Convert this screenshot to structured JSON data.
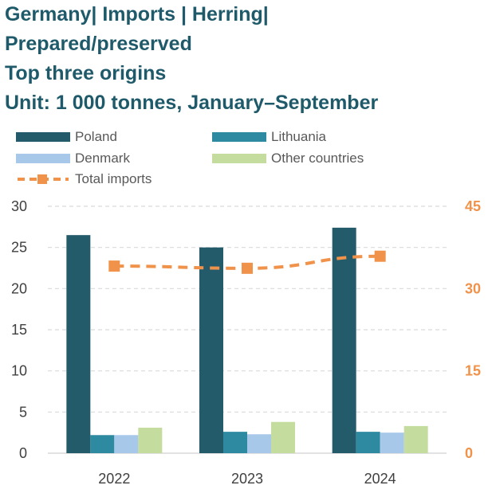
{
  "title_lines": [
    "Germany| Imports | Herring|",
    "Prepared/preserved",
    "Top three origins",
    "Unit: 1 000 tonnes, January–September"
  ],
  "chart_data": {
    "type": "bar",
    "categories": [
      "2022",
      "2023",
      "2024"
    ],
    "series": [
      {
        "name": "Poland",
        "color": "#245b6a",
        "axis": "left",
        "values": [
          26.5,
          25.0,
          27.4
        ]
      },
      {
        "name": "Lithuania",
        "color": "#2e8aa0",
        "axis": "left",
        "values": [
          2.2,
          2.6,
          2.6
        ]
      },
      {
        "name": "Denmark",
        "color": "#a8c8ea",
        "axis": "left",
        "values": [
          2.2,
          2.3,
          2.5
        ]
      },
      {
        "name": "Other countries",
        "color": "#c5dc9f",
        "axis": "left",
        "values": [
          3.1,
          3.8,
          3.3
        ]
      }
    ],
    "line_series": {
      "name": "Total imports",
      "type": "line",
      "style": "dashed",
      "marker": "square",
      "color": "#f0924a",
      "axis": "right",
      "values": [
        34.1,
        33.7,
        35.9
      ]
    },
    "y_left": {
      "min": 0,
      "max": 30,
      "ticks": [
        "0",
        "5",
        "10",
        "15",
        "20",
        "25",
        "30"
      ]
    },
    "y_right": {
      "min": 0,
      "max": 45,
      "ticks": [
        "0",
        "15",
        "30",
        "45"
      ]
    },
    "grid": true,
    "legend_position": "top"
  }
}
